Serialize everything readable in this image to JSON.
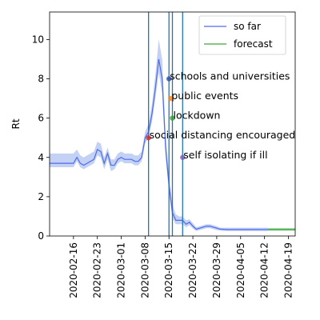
{
  "chart_data": {
    "type": "line",
    "title": "",
    "xlabel": "",
    "ylabel": "Rt",
    "x_start": "2020-02-09",
    "xlim": [
      "2020-02-09",
      "2020-04-21"
    ],
    "ylim": [
      0,
      11.4
    ],
    "yticks": [
      0,
      2,
      4,
      6,
      8,
      10
    ],
    "xticks": [
      "2020-02-16",
      "2020-02-23",
      "2020-03-01",
      "2020-03-08",
      "2020-03-15",
      "2020-03-22",
      "2020-03-29",
      "2020-04-05",
      "2020-04-12",
      "2020-04-19"
    ],
    "grid": false,
    "legend": {
      "position": "top-right"
    },
    "colors": {
      "so_far": "#4f6bed",
      "band": "#a9bdf0",
      "forecast": "#3aa63a",
      "vline": "#1f77b4"
    },
    "series": [
      {
        "name": "so far",
        "color": "#4f6bed",
        "x": [
          "2020-02-09",
          "2020-02-10",
          "2020-02-11",
          "2020-02-12",
          "2020-02-13",
          "2020-02-14",
          "2020-02-15",
          "2020-02-16",
          "2020-02-17",
          "2020-02-18",
          "2020-02-19",
          "2020-02-20",
          "2020-02-21",
          "2020-02-22",
          "2020-02-23",
          "2020-02-24",
          "2020-02-25",
          "2020-02-26",
          "2020-02-27",
          "2020-02-28",
          "2020-02-29",
          "2020-03-01",
          "2020-03-02",
          "2020-03-03",
          "2020-03-04",
          "2020-03-05",
          "2020-03-06",
          "2020-03-07",
          "2020-03-08",
          "2020-03-09",
          "2020-03-10",
          "2020-03-11",
          "2020-03-12",
          "2020-03-13",
          "2020-03-14",
          "2020-03-15",
          "2020-03-16",
          "2020-03-17",
          "2020-03-18",
          "2020-03-19",
          "2020-03-20",
          "2020-03-21",
          "2020-03-22",
          "2020-03-23",
          "2020-03-24",
          "2020-03-25",
          "2020-03-26",
          "2020-03-27",
          "2020-03-28",
          "2020-03-29",
          "2020-03-30",
          "2020-04-01",
          "2020-04-05",
          "2020-04-09",
          "2020-04-13"
        ],
        "y": [
          3.7,
          3.7,
          3.7,
          3.7,
          3.7,
          3.7,
          3.7,
          3.7,
          4.0,
          3.7,
          3.6,
          3.7,
          3.8,
          3.9,
          4.4,
          4.3,
          3.7,
          4.2,
          3.6,
          3.6,
          3.9,
          4.0,
          3.9,
          3.9,
          3.9,
          3.8,
          3.8,
          4.0,
          5.0,
          5.3,
          6.2,
          7.5,
          9.0,
          8.0,
          4.5,
          2.6,
          1.2,
          0.8,
          0.8,
          0.8,
          0.6,
          0.7,
          0.5,
          0.35,
          0.4,
          0.45,
          0.5,
          0.5,
          0.45,
          0.4,
          0.35,
          0.33,
          0.33,
          0.33,
          0.33
        ],
        "lower": [
          3.5,
          3.5,
          3.5,
          3.5,
          3.5,
          3.5,
          3.5,
          3.5,
          3.8,
          3.5,
          3.4,
          3.5,
          3.6,
          3.7,
          4.1,
          4.0,
          3.4,
          3.9,
          3.3,
          3.4,
          3.7,
          3.8,
          3.7,
          3.7,
          3.7,
          3.6,
          3.6,
          3.8,
          4.7,
          5.0,
          5.8,
          7.0,
          8.3,
          7.3,
          4.0,
          2.2,
          0.9,
          0.6,
          0.6,
          0.6,
          0.45,
          0.55,
          0.38,
          0.25,
          0.3,
          0.35,
          0.4,
          0.4,
          0.35,
          0.3,
          0.27,
          0.25,
          0.25,
          0.25,
          0.25
        ],
        "upper": [
          4.2,
          4.2,
          4.2,
          4.2,
          4.2,
          4.2,
          4.2,
          4.2,
          4.4,
          4.1,
          4.0,
          4.1,
          4.2,
          4.3,
          4.8,
          4.7,
          4.0,
          4.5,
          3.9,
          3.9,
          4.2,
          4.3,
          4.2,
          4.2,
          4.2,
          4.1,
          4.1,
          4.3,
          5.3,
          5.7,
          6.7,
          8.2,
          10.0,
          9.0,
          5.2,
          3.1,
          1.6,
          1.1,
          1.0,
          1.0,
          0.8,
          0.85,
          0.65,
          0.45,
          0.5,
          0.55,
          0.6,
          0.6,
          0.55,
          0.5,
          0.42,
          0.42,
          0.42,
          0.42,
          0.42
        ]
      },
      {
        "name": "forecast",
        "color": "#3aa63a",
        "x": [
          "2020-04-13",
          "2020-04-21"
        ],
        "y": [
          0.33,
          0.33
        ],
        "lower": [
          0.27,
          0.27
        ],
        "upper": [
          0.4,
          0.4
        ]
      }
    ],
    "vlines": [
      "2020-03-09",
      "2020-03-15",
      "2020-03-16",
      "2020-03-19"
    ],
    "events": [
      {
        "label": "schools and universities",
        "x": "2020-03-15",
        "y": 8,
        "color": "#2b4aa6"
      },
      {
        "label": "public events",
        "x": "2020-03-15.5",
        "y": 7,
        "color": "#ff7f0e"
      },
      {
        "label": "lockdown",
        "x": "2020-03-16",
        "y": 6,
        "color": "#2ca02c"
      },
      {
        "label": "social distancing encouraged",
        "x": "2020-03-09",
        "y": 5,
        "color": "#d62728"
      },
      {
        "label": "self isolating if ill",
        "x": "2020-03-19",
        "y": 4,
        "color": "#7b5ab5"
      }
    ]
  }
}
